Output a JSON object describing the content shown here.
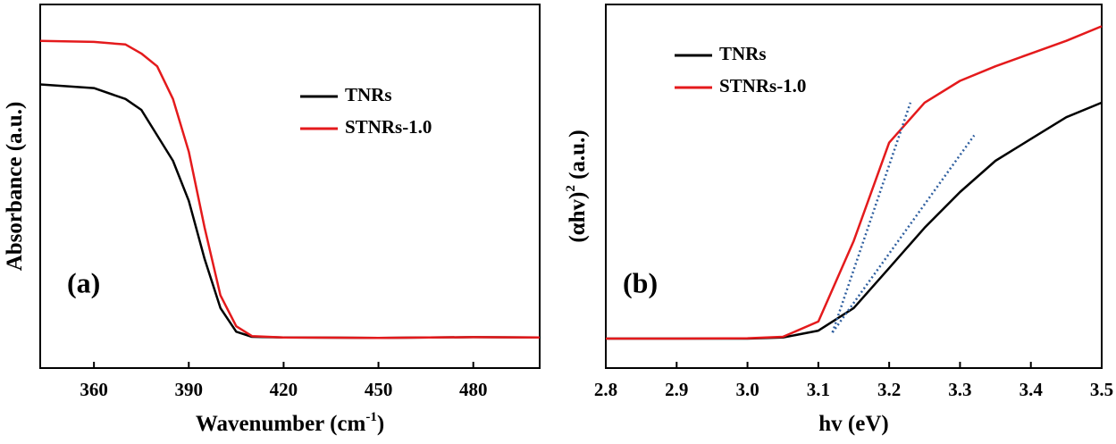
{
  "chart_data": [
    {
      "type": "line",
      "xlabel": [
        "Wavenumber (cm",
        "-1",
        ")"
      ],
      "ylabel": [
        "Absorbance (a.u.)"
      ],
      "annotation": "(a)",
      "xlim": [
        343,
        501
      ],
      "xticks": [
        360,
        390,
        420,
        450,
        480
      ],
      "ylim": [
        0,
        1
      ],
      "x": [
        343,
        360,
        370,
        375,
        380,
        385,
        390,
        395,
        400,
        405,
        410,
        420,
        450,
        480,
        501
      ],
      "series": [
        {
          "name": "TNRs",
          "color": "#000000",
          "values": [
            0.78,
            0.77,
            0.74,
            0.71,
            0.64,
            0.57,
            0.46,
            0.3,
            0.165,
            0.1,
            0.086,
            0.084,
            0.083,
            0.085,
            0.084
          ]
        },
        {
          "name": "STNRs-1.0",
          "color": "#e41a1c",
          "values": [
            0.9,
            0.897,
            0.89,
            0.865,
            0.83,
            0.74,
            0.595,
            0.386,
            0.2,
            0.115,
            0.088,
            0.084,
            0.083,
            0.085,
            0.084
          ]
        }
      ]
    },
    {
      "type": "line",
      "xlabel": [
        "hv (eV)"
      ],
      "ylabel": [
        "(αhv)",
        "2",
        " (a.u.)"
      ],
      "annotation": "(b)",
      "xlim": [
        2.8,
        3.5
      ],
      "xticks": [
        2.8,
        2.9,
        {
          "value": 3,
          "label": "3.0"
        },
        3.1,
        3.2,
        3.3,
        3.4,
        3.5
      ],
      "ylim": [
        0,
        1
      ],
      "x": [
        2.8,
        2.9,
        3.0,
        3.05,
        3.1,
        3.15,
        3.2,
        3.25,
        3.3,
        3.35,
        3.4,
        3.45,
        3.5
      ],
      "series": [
        {
          "name": "TNRs",
          "color": "#000000",
          "values": [
            0.081,
            0.081,
            0.081,
            0.084,
            0.103,
            0.165,
            0.275,
            0.386,
            0.484,
            0.57,
            0.63,
            0.69,
            0.73
          ]
        },
        {
          "name": "STNRs-1.0",
          "color": "#e41a1c",
          "values": [
            0.081,
            0.081,
            0.082,
            0.086,
            0.128,
            0.35,
            0.62,
            0.73,
            0.79,
            0.83,
            0.865,
            0.9,
            0.94
          ]
        }
      ],
      "fit_lines": [
        {
          "color": "#2f5f9f",
          "x": [
            3.12,
            3.23
          ],
          "values": [
            0.098,
            0.73
          ]
        },
        {
          "color": "#2f5f9f",
          "x": [
            3.12,
            3.32
          ],
          "values": [
            0.098,
            0.64
          ]
        }
      ]
    }
  ]
}
